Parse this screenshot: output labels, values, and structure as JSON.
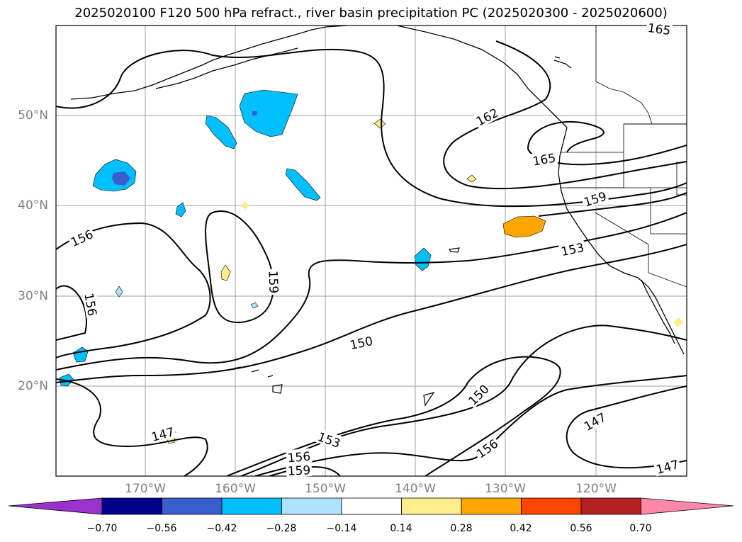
{
  "title": "2025020100 F120 500 hPa refract., river basin precipitation PC (2025020300 - 2025020600)",
  "lat_labels": [
    "50°N",
    "40°N",
    "30°N",
    "20°N"
  ],
  "lon_labels": [
    "170°W",
    "160°W",
    "150°W",
    "140°W",
    "130°W",
    "120°W"
  ],
  "contour_labels": [
    "165",
    "162",
    "165",
    "159",
    "156",
    "153",
    "159",
    "156",
    "150",
    "150",
    "147",
    "147",
    "153",
    "156",
    "156",
    "159",
    "147"
  ],
  "colorbar": {
    "ticks": [
      "−0.70",
      "−0.56",
      "−0.42",
      "−0.28",
      "−0.14",
      "0.14",
      "0.28",
      "0.42",
      "0.56",
      "0.70"
    ],
    "colors": [
      "#9933cc",
      "#00008b",
      "#3a5fcd",
      "#00bfff",
      "#b0e2ff",
      "#ffffff",
      "#ffec8b",
      "#ffa500",
      "#ff4500",
      "#b22222",
      "#ff88aa"
    ]
  },
  "legend_colors": {
    "land_outline": "#000000",
    "contour": "#000000",
    "grid": "#a0a0a0"
  }
}
